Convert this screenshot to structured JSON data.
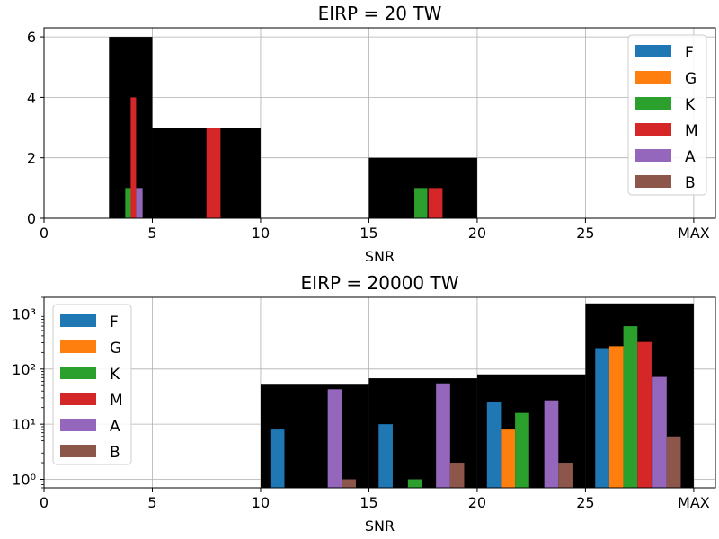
{
  "colors": {
    "F": "#1f77b4",
    "G": "#ff7f0e",
    "K": "#2ca02c",
    "M": "#d62728",
    "A": "#9467bd",
    "B": "#8c564b",
    "total": "#000000",
    "grid": "#b0b0b0"
  },
  "chart_data": [
    {
      "type": "bar",
      "title": "EIRP = 20 TW",
      "xlabel": "SNR",
      "ylabel": "",
      "xlim": [
        0,
        31
      ],
      "ylim": [
        0,
        6.3
      ],
      "yscale": "linear",
      "xticks": [
        0,
        5,
        10,
        15,
        20,
        25,
        30
      ],
      "xtick_labels": [
        "0",
        "5",
        "10",
        "15",
        "20",
        "25",
        "MAX"
      ],
      "yticks": [
        0,
        2,
        4,
        6
      ],
      "ytick_labels": [
        "0",
        "2",
        "4",
        "6"
      ],
      "grid": true,
      "legend_position": "top-right",
      "legend": [
        "F",
        "G",
        "K",
        "M",
        "A",
        "B"
      ],
      "total_bins": [
        {
          "x0": 3,
          "x1": 5,
          "value": 6
        },
        {
          "x0": 5,
          "x1": 10,
          "value": 3
        },
        {
          "x0": 15,
          "x1": 20,
          "value": 2
        }
      ],
      "series": [
        {
          "name": "K",
          "bars": [
            {
              "x0": 3.75,
              "x1": 4.05,
              "value": 1
            },
            {
              "x0": 17.1,
              "x1": 17.7,
              "value": 1
            }
          ]
        },
        {
          "name": "M",
          "bars": [
            {
              "x0": 4.0,
              "x1": 4.25,
              "value": 4
            },
            {
              "x0": 7.5,
              "x1": 8.15,
              "value": 3
            },
            {
              "x0": 17.75,
              "x1": 18.4,
              "value": 1
            }
          ]
        },
        {
          "name": "A",
          "bars": [
            {
              "x0": 4.25,
              "x1": 4.55,
              "value": 1
            }
          ]
        }
      ]
    },
    {
      "type": "bar",
      "title": "EIRP = 20000 TW",
      "xlabel": "SNR",
      "ylabel": "",
      "xlim": [
        0,
        31
      ],
      "ylim": [
        0.7,
        2000
      ],
      "yscale": "log",
      "xticks": [
        0,
        5,
        10,
        15,
        20,
        25,
        30
      ],
      "xtick_labels": [
        "0",
        "5",
        "10",
        "15",
        "20",
        "25",
        "MAX"
      ],
      "yticks": [
        1,
        10,
        100,
        1000
      ],
      "ytick_labels": [
        "10⁰",
        "10¹",
        "10²",
        "10³"
      ],
      "grid": true,
      "legend_position": "top-left",
      "legend": [
        "F",
        "G",
        "K",
        "M",
        "A",
        "B"
      ],
      "total_bins": [
        {
          "x0": 10,
          "x1": 15,
          "value": 52
        },
        {
          "x0": 15,
          "x1": 20,
          "value": 68
        },
        {
          "x0": 20,
          "x1": 25,
          "value": 80
        },
        {
          "x0": 25,
          "x1": 30,
          "value": 1550
        }
      ],
      "series": [
        {
          "name": "F",
          "bars": [
            {
              "x0": 10.45,
              "x1": 11.1,
              "value": 8
            },
            {
              "x0": 15.45,
              "x1": 16.1,
              "value": 10
            },
            {
              "x0": 20.45,
              "x1": 21.1,
              "value": 25
            },
            {
              "x0": 25.45,
              "x1": 26.1,
              "value": 240
            }
          ]
        },
        {
          "name": "G",
          "bars": [
            {
              "x0": 21.1,
              "x1": 21.75,
              "value": 8
            },
            {
              "x0": 26.1,
              "x1": 26.75,
              "value": 260
            }
          ]
        },
        {
          "name": "K",
          "bars": [
            {
              "x0": 16.8,
              "x1": 17.45,
              "value": 1
            },
            {
              "x0": 21.75,
              "x1": 22.4,
              "value": 16
            },
            {
              "x0": 26.75,
              "x1": 27.4,
              "value": 600
            }
          ]
        },
        {
          "name": "M",
          "bars": [
            {
              "x0": 27.4,
              "x1": 28.05,
              "value": 310
            }
          ]
        },
        {
          "name": "A",
          "bars": [
            {
              "x0": 13.1,
              "x1": 13.75,
              "value": 43
            },
            {
              "x0": 18.1,
              "x1": 18.75,
              "value": 55
            },
            {
              "x0": 23.1,
              "x1": 23.75,
              "value": 27
            },
            {
              "x0": 28.1,
              "x1": 28.75,
              "value": 72
            }
          ]
        },
        {
          "name": "B",
          "bars": [
            {
              "x0": 13.75,
              "x1": 14.4,
              "value": 1
            },
            {
              "x0": 18.75,
              "x1": 19.4,
              "value": 2
            },
            {
              "x0": 23.75,
              "x1": 24.4,
              "value": 2
            },
            {
              "x0": 28.75,
              "x1": 29.4,
              "value": 6
            }
          ]
        }
      ]
    }
  ]
}
